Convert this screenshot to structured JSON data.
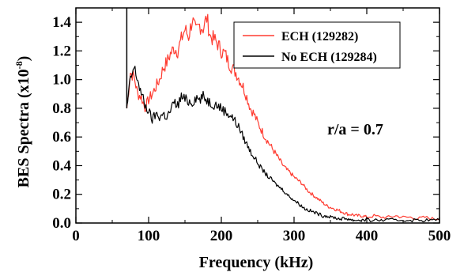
{
  "chart_data": {
    "type": "line",
    "xlabel": "Frequency (kHz)",
    "ylabel_main": "BES Spectra (x10",
    "ylabel_exp": "-8",
    "ylabel_close": ")",
    "xlim": [
      0,
      500
    ],
    "ylim": [
      0,
      1.5
    ],
    "xticks": [
      0,
      100,
      200,
      300,
      400,
      500
    ],
    "xtick_labels": [
      "0",
      "100",
      "200",
      "300",
      "400",
      "500"
    ],
    "yticks": [
      0.0,
      0.2,
      0.4,
      0.6,
      0.8,
      1.0,
      1.2,
      1.4
    ],
    "ytick_labels": [
      "0.0",
      "0.2",
      "0.4",
      "0.6",
      "0.8",
      "1.0",
      "1.2",
      "1.4"
    ],
    "grid": false,
    "legend_position": "top-right",
    "annotation": "r/a = 0.7",
    "spike": {
      "x": 70,
      "y_top": 1.5
    },
    "series": [
      {
        "name": "ECH (129282)",
        "color": "#ff3b30",
        "x": [
          70,
          75,
          80,
          85,
          90,
          95,
          100,
          105,
          110,
          115,
          120,
          125,
          130,
          135,
          140,
          145,
          150,
          155,
          160,
          165,
          170,
          175,
          180,
          185,
          190,
          195,
          200,
          205,
          210,
          215,
          220,
          225,
          230,
          235,
          240,
          245,
          250,
          255,
          260,
          265,
          270,
          275,
          280,
          285,
          290,
          295,
          300,
          305,
          310,
          315,
          320,
          325,
          330,
          335,
          340,
          345,
          350,
          355,
          360,
          365,
          370,
          375,
          380,
          385,
          390,
          395,
          400,
          410,
          420,
          430,
          440,
          450,
          460,
          470,
          480,
          490,
          500
        ],
        "y": [
          0.8,
          1.05,
          1.02,
          0.9,
          0.88,
          0.8,
          0.86,
          0.9,
          0.95,
          1.0,
          1.08,
          1.12,
          1.18,
          1.22,
          1.2,
          1.28,
          1.35,
          1.3,
          1.42,
          1.33,
          1.38,
          1.36,
          1.43,
          1.3,
          1.28,
          1.25,
          1.2,
          1.18,
          1.12,
          1.08,
          1.05,
          1.0,
          0.95,
          0.88,
          0.8,
          0.76,
          0.7,
          0.65,
          0.6,
          0.56,
          0.52,
          0.48,
          0.44,
          0.4,
          0.37,
          0.35,
          0.32,
          0.3,
          0.28,
          0.25,
          0.22,
          0.2,
          0.18,
          0.16,
          0.14,
          0.12,
          0.11,
          0.1,
          0.09,
          0.08,
          0.07,
          0.06,
          0.06,
          0.05,
          0.05,
          0.05,
          0.04,
          0.05,
          0.04,
          0.04,
          0.05,
          0.04,
          0.04,
          0.03,
          0.04,
          0.03,
          0.03
        ]
      },
      {
        "name": "No ECH (129284)",
        "color": "#000000",
        "x": [
          70,
          75,
          80,
          85,
          90,
          95,
          100,
          105,
          110,
          115,
          120,
          125,
          130,
          135,
          140,
          145,
          150,
          155,
          160,
          165,
          170,
          175,
          180,
          185,
          190,
          195,
          200,
          205,
          210,
          215,
          220,
          225,
          230,
          235,
          240,
          245,
          250,
          255,
          260,
          265,
          270,
          275,
          280,
          285,
          290,
          295,
          300,
          305,
          310,
          315,
          320,
          325,
          330,
          335,
          340,
          345,
          350,
          355,
          360,
          365,
          370,
          375,
          380,
          385,
          390,
          395,
          400,
          410,
          420,
          430,
          440,
          450,
          460,
          470,
          480,
          490,
          500
        ],
        "y": [
          0.8,
          1.0,
          1.08,
          1.0,
          0.9,
          0.82,
          0.78,
          0.72,
          0.76,
          0.74,
          0.76,
          0.74,
          0.78,
          0.84,
          0.82,
          0.88,
          0.86,
          0.85,
          0.84,
          0.88,
          0.86,
          0.88,
          0.86,
          0.84,
          0.83,
          0.82,
          0.8,
          0.78,
          0.76,
          0.74,
          0.7,
          0.66,
          0.6,
          0.55,
          0.5,
          0.46,
          0.42,
          0.38,
          0.35,
          0.32,
          0.3,
          0.27,
          0.25,
          0.23,
          0.2,
          0.18,
          0.16,
          0.14,
          0.12,
          0.1,
          0.09,
          0.08,
          0.07,
          0.06,
          0.05,
          0.05,
          0.04,
          0.04,
          0.03,
          0.03,
          0.03,
          0.03,
          0.02,
          0.02,
          0.02,
          0.02,
          0.02,
          0.02,
          0.02,
          0.02,
          0.02,
          0.02,
          0.02,
          0.02,
          0.02,
          0.02,
          0.02
        ]
      }
    ]
  }
}
